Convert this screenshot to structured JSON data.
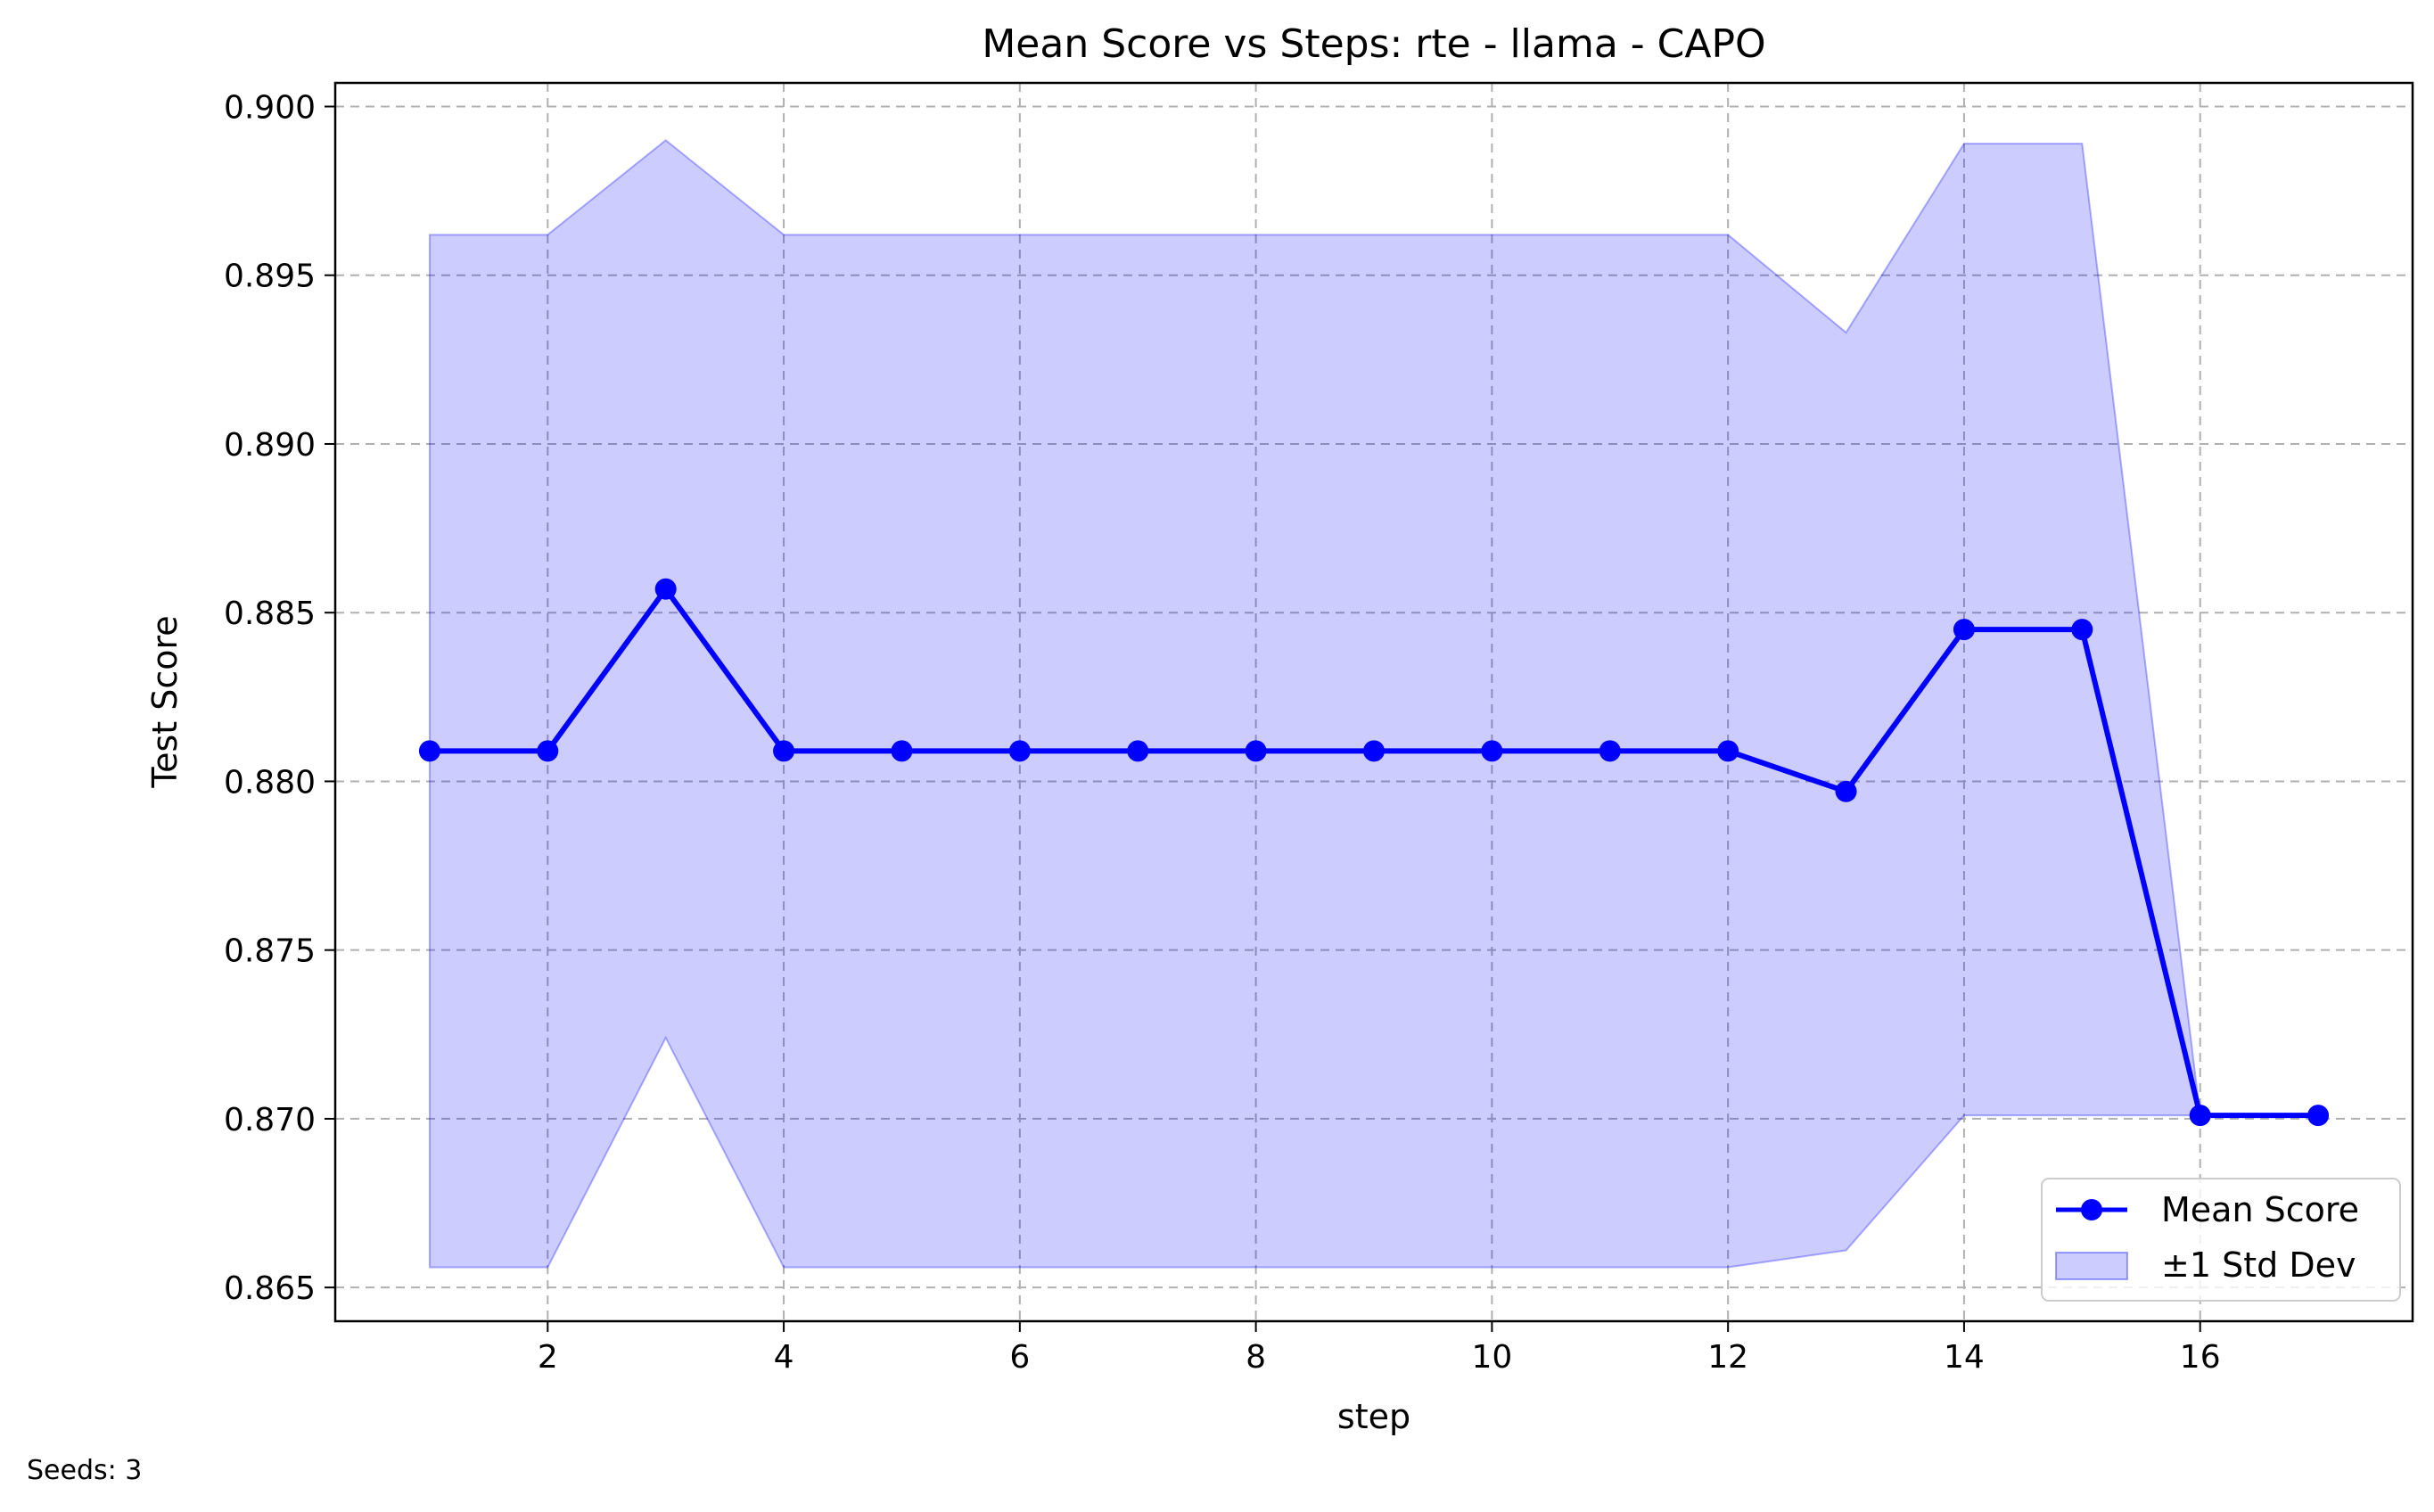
{
  "chart_data": {
    "type": "line",
    "title": "Mean Score vs Steps: rte - llama - CAPO",
    "xlabel": "step",
    "ylabel": "Test Score",
    "xlim": [
      0.2,
      17.8
    ],
    "ylim": [
      0.864,
      0.9007
    ],
    "x_ticks": [
      2,
      4,
      6,
      8,
      10,
      12,
      14,
      16
    ],
    "y_ticks": [
      0.865,
      0.87,
      0.875,
      0.88,
      0.885,
      0.89,
      0.895,
      0.9
    ],
    "y_tick_labels": [
      "0.865",
      "0.870",
      "0.875",
      "0.880",
      "0.885",
      "0.890",
      "0.895",
      "0.900"
    ],
    "grid": true,
    "legend_position": "lower-right",
    "series": [
      {
        "name": "Mean Score",
        "color": "#0000ff",
        "marker": "circle",
        "x": [
          1,
          2,
          3,
          4,
          5,
          6,
          7,
          8,
          9,
          10,
          11,
          12,
          13,
          14,
          15,
          16,
          17
        ],
        "values": [
          0.8809,
          0.8809,
          0.8857,
          0.8809,
          0.8809,
          0.8809,
          0.8809,
          0.8809,
          0.8809,
          0.8809,
          0.8809,
          0.8809,
          0.8797,
          0.8845,
          0.8845,
          0.8701,
          0.8701
        ]
      }
    ],
    "band": {
      "name": "±1 Std Dev",
      "color": "#0000ff",
      "opacity": 0.2,
      "x": [
        1,
        2,
        3,
        4,
        5,
        6,
        7,
        8,
        9,
        10,
        11,
        12,
        13,
        14,
        15,
        16
      ],
      "upper": [
        0.8962,
        0.8962,
        0.899,
        0.8962,
        0.8962,
        0.8962,
        0.8962,
        0.8962,
        0.8962,
        0.8962,
        0.8962,
        0.8962,
        0.8933,
        0.8989,
        0.8989,
        0.8701
      ],
      "lower": [
        0.8656,
        0.8656,
        0.8724,
        0.8656,
        0.8656,
        0.8656,
        0.8656,
        0.8656,
        0.8656,
        0.8656,
        0.8656,
        0.8656,
        0.8661,
        0.8701,
        0.8701,
        0.8701
      ]
    }
  },
  "footnote": "Seeds: 3"
}
